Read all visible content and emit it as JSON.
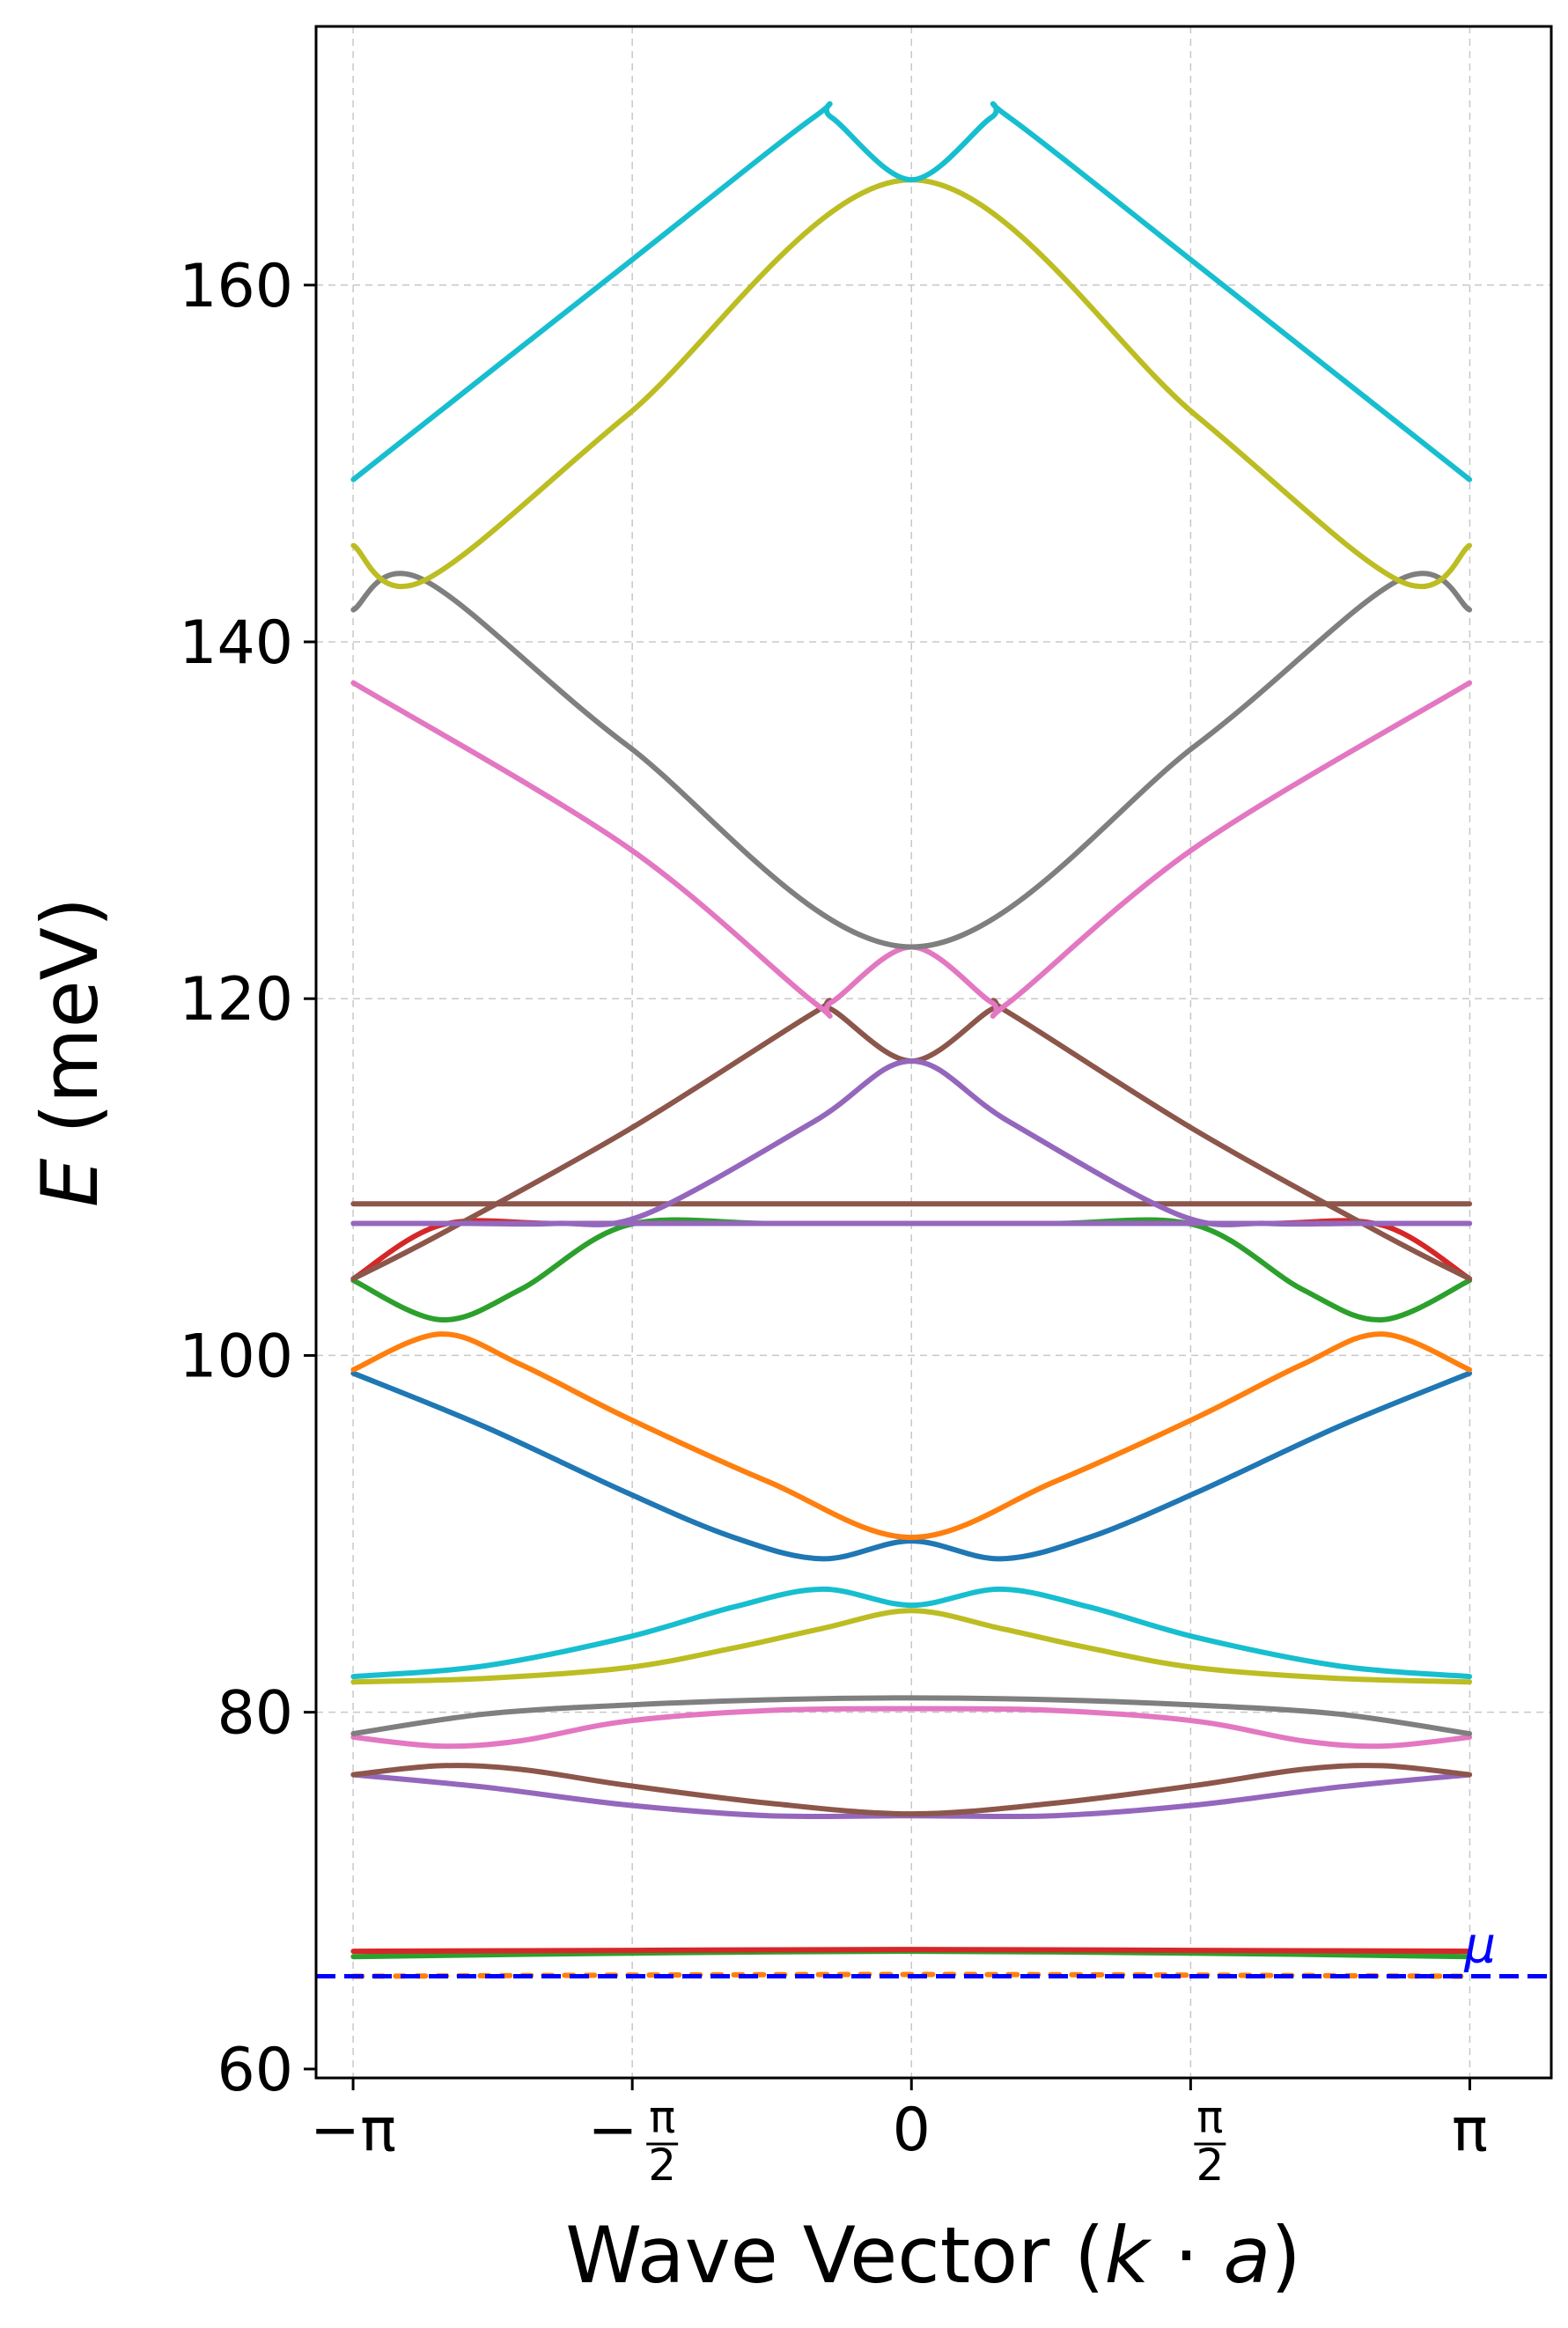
{
  "chart_data": {
    "type": "line",
    "xlabel_parts": {
      "prefix": "Wave Vector (",
      "k": "k",
      "dot": " · ",
      "a": "a",
      "suffix": ")"
    },
    "ylabel_parts": {
      "E": "E",
      "unit": " (meV)"
    },
    "xlim": [
      -3.35,
      3.6
    ],
    "ylim": [
      59.5,
      174.5
    ],
    "grid": true,
    "legend": "none",
    "x_ticks": [
      {
        "value": -3.14159,
        "label": "−π"
      },
      {
        "value": -1.5708,
        "num": "π",
        "den": "2",
        "sign": "−"
      },
      {
        "value": 0,
        "label": "0"
      },
      {
        "value": 1.5708,
        "num": "π",
        "den": "2",
        "sign": ""
      },
      {
        "value": 3.14159,
        "label": "π"
      }
    ],
    "y_ticks": [
      {
        "value": 60,
        "label": "60"
      },
      {
        "value": 80,
        "label": "80"
      },
      {
        "value": 100,
        "label": "100"
      },
      {
        "value": 120,
        "label": "120"
      },
      {
        "value": 140,
        "label": "140"
      },
      {
        "value": 160,
        "label": "160"
      }
    ],
    "chemical_potential": {
      "value": 65.2,
      "label": "μ",
      "color": "#0000ff"
    },
    "series": [
      {
        "color": "#ff7f0e",
        "x": [
          -3.14,
          0,
          3.14
        ],
        "y": [
          65.2,
          65.3,
          65.2
        ],
        "style": "dotted"
      },
      {
        "color": "#2ca02c",
        "x": [
          -3.14,
          -1.57,
          0,
          1.57,
          3.14
        ],
        "y": [
          66.3,
          66.5,
          66.6,
          66.5,
          66.3
        ]
      },
      {
        "color": "#d62728",
        "x": [
          -3.14,
          -1.57,
          0,
          1.57,
          3.14
        ],
        "y": [
          66.6,
          66.65,
          66.7,
          66.65,
          66.6
        ]
      },
      {
        "color": "#9467bd",
        "x": [
          -3.14,
          -2.4,
          -1.6,
          -0.8,
          0,
          0.8,
          1.6,
          2.4,
          3.14
        ],
        "y": [
          76.5,
          75.8,
          74.8,
          74.2,
          74.2,
          74.2,
          74.8,
          75.8,
          76.5
        ]
      },
      {
        "color": "#8c564b",
        "x": [
          -3.14,
          -2.65,
          -2.2,
          -1.6,
          -0.8,
          0,
          0.8,
          1.6,
          2.2,
          2.65,
          3.14
        ],
        "y": [
          76.5,
          77.0,
          76.8,
          75.9,
          74.9,
          74.3,
          74.9,
          75.9,
          76.8,
          77.0,
          76.5
        ]
      },
      {
        "color": "#e377c2",
        "x": [
          -3.14,
          -2.65,
          -2.2,
          -1.6,
          -0.8,
          0,
          0.8,
          1.6,
          2.2,
          2.65,
          3.14
        ],
        "y": [
          78.6,
          78.1,
          78.4,
          79.5,
          80.1,
          80.2,
          80.1,
          79.5,
          78.4,
          78.1,
          78.6
        ]
      },
      {
        "color": "#7f7f7f",
        "x": [
          -3.14,
          -2.4,
          -1.6,
          -0.8,
          0,
          0.8,
          1.6,
          2.4,
          3.14
        ],
        "y": [
          78.8,
          79.9,
          80.4,
          80.7,
          80.8,
          80.7,
          80.4,
          79.9,
          78.8
        ]
      },
      {
        "color": "#bcbd22",
        "x": [
          -3.14,
          -2.4,
          -1.6,
          -1.0,
          -0.5,
          0,
          0.5,
          1.0,
          1.6,
          2.4,
          3.14
        ],
        "y": [
          81.7,
          81.9,
          82.5,
          83.6,
          84.7,
          85.7,
          84.7,
          83.6,
          82.5,
          81.9,
          81.7
        ]
      },
      {
        "color": "#17becf",
        "x": [
          -3.14,
          -2.4,
          -1.6,
          -1.0,
          -0.5,
          0,
          0.5,
          1.0,
          1.6,
          2.4,
          3.14
        ],
        "y": [
          82.0,
          82.6,
          84.2,
          85.9,
          86.9,
          86.0,
          86.9,
          85.9,
          84.2,
          82.6,
          82.0
        ]
      },
      {
        "color": "#1f77b4",
        "x": [
          -3.14,
          -2.4,
          -1.6,
          -1.0,
          -0.5,
          0,
          0.5,
          1.0,
          1.6,
          2.4,
          3.14
        ],
        "y": [
          99.0,
          96.0,
          92.3,
          89.8,
          88.6,
          89.6,
          88.6,
          89.8,
          92.3,
          96.0,
          99.0
        ]
      },
      {
        "color": "#ff7f0e",
        "x": [
          -3.14,
          -2.65,
          -2.2,
          -1.6,
          -0.8,
          0,
          0.8,
          1.6,
          2.2,
          2.65,
          3.14
        ],
        "y": [
          99.2,
          101.2,
          99.5,
          96.5,
          92.9,
          89.8,
          92.9,
          96.5,
          99.5,
          101.2,
          99.2
        ]
      },
      {
        "color": "#2ca02c",
        "x": [
          -3.14,
          -2.65,
          -2.2,
          -1.6,
          -0.8,
          0,
          0.8,
          1.6,
          2.2,
          2.65,
          3.14
        ],
        "y": [
          104.2,
          102.0,
          103.7,
          107.3,
          107.4,
          107.4,
          107.4,
          107.3,
          103.7,
          102.0,
          104.2
        ]
      },
      {
        "color": "#d62728",
        "x": [
          -3.14,
          -2.65,
          -2.0,
          -1.0,
          0,
          1.0,
          2.0,
          2.65,
          3.14
        ],
        "y": [
          104.3,
          107.3,
          107.4,
          107.4,
          107.4,
          107.4,
          107.4,
          107.3,
          104.3
        ]
      },
      {
        "color": "#8c564b",
        "x": [
          -3.14,
          -2.6,
          -1.5,
          -0.6,
          -0.45,
          0,
          0.45,
          0.6,
          1.5,
          2.6,
          3.14
        ],
        "y": [
          108.5,
          108.5,
          108.5,
          108.5,
          108.5,
          108.5,
          108.5,
          108.5,
          108.5,
          108.5,
          108.5
        ]
      },
      {
        "color": "#9467bd",
        "x": [
          -3.14,
          -1.5,
          -0.5,
          0,
          0.5,
          1.5,
          3.14
        ],
        "y": [
          107.4,
          107.4,
          107.4,
          107.4,
          107.4,
          107.4,
          107.4
        ]
      },
      {
        "color": "#8c564b",
        "x": [
          -3.14,
          -2.65,
          -1.6,
          -0.55,
          -0.45,
          0,
          0.45,
          0.55,
          1.6,
          2.65,
          3.14
        ],
        "y": [
          104.3,
          106.8,
          112.6,
          119.2,
          119.4,
          116.5,
          119.4,
          119.2,
          112.6,
          106.8,
          104.3
        ]
      },
      {
        "color": "#9467bd",
        "x": [
          -3.14,
          -2.5,
          -2.0,
          -1.5,
          -0.55,
          0,
          0.55,
          1.5,
          2.0,
          2.5,
          3.14
        ],
        "y": [
          107.4,
          107.4,
          107.4,
          107.9,
          113.1,
          116.5,
          113.1,
          107.9,
          107.4,
          107.4,
          107.4
        ]
      },
      {
        "color": "#e377c2",
        "x": [
          -3.14,
          -1.6,
          -0.55,
          -0.45,
          0,
          0.45,
          0.55,
          1.6,
          3.14
        ],
        "y": [
          137.7,
          128.5,
          119.8,
          119.8,
          122.9,
          119.8,
          119.8,
          128.5,
          137.7
        ]
      },
      {
        "color": "#7f7f7f",
        "x": [
          -3.14,
          -2.75,
          -1.6,
          0,
          1.6,
          2.75,
          3.14
        ],
        "y": [
          141.8,
          143.5,
          134.2,
          122.9,
          134.2,
          143.5,
          141.8
        ]
      },
      {
        "color": "#bcbd22",
        "x": [
          -3.14,
          -2.75,
          -1.6,
          0,
          1.6,
          2.75,
          3.14
        ],
        "y": [
          145.4,
          143.4,
          152.7,
          165.9,
          152.7,
          143.4,
          145.4
        ]
      },
      {
        "color": "#17becf",
        "x": [
          -3.14,
          -1.6,
          -0.55,
          -0.45,
          0,
          0.45,
          0.55,
          1.6,
          3.14
        ],
        "y": [
          149.1,
          161.2,
          169.4,
          169.4,
          165.9,
          169.4,
          169.4,
          161.2,
          149.1
        ]
      }
    ]
  }
}
